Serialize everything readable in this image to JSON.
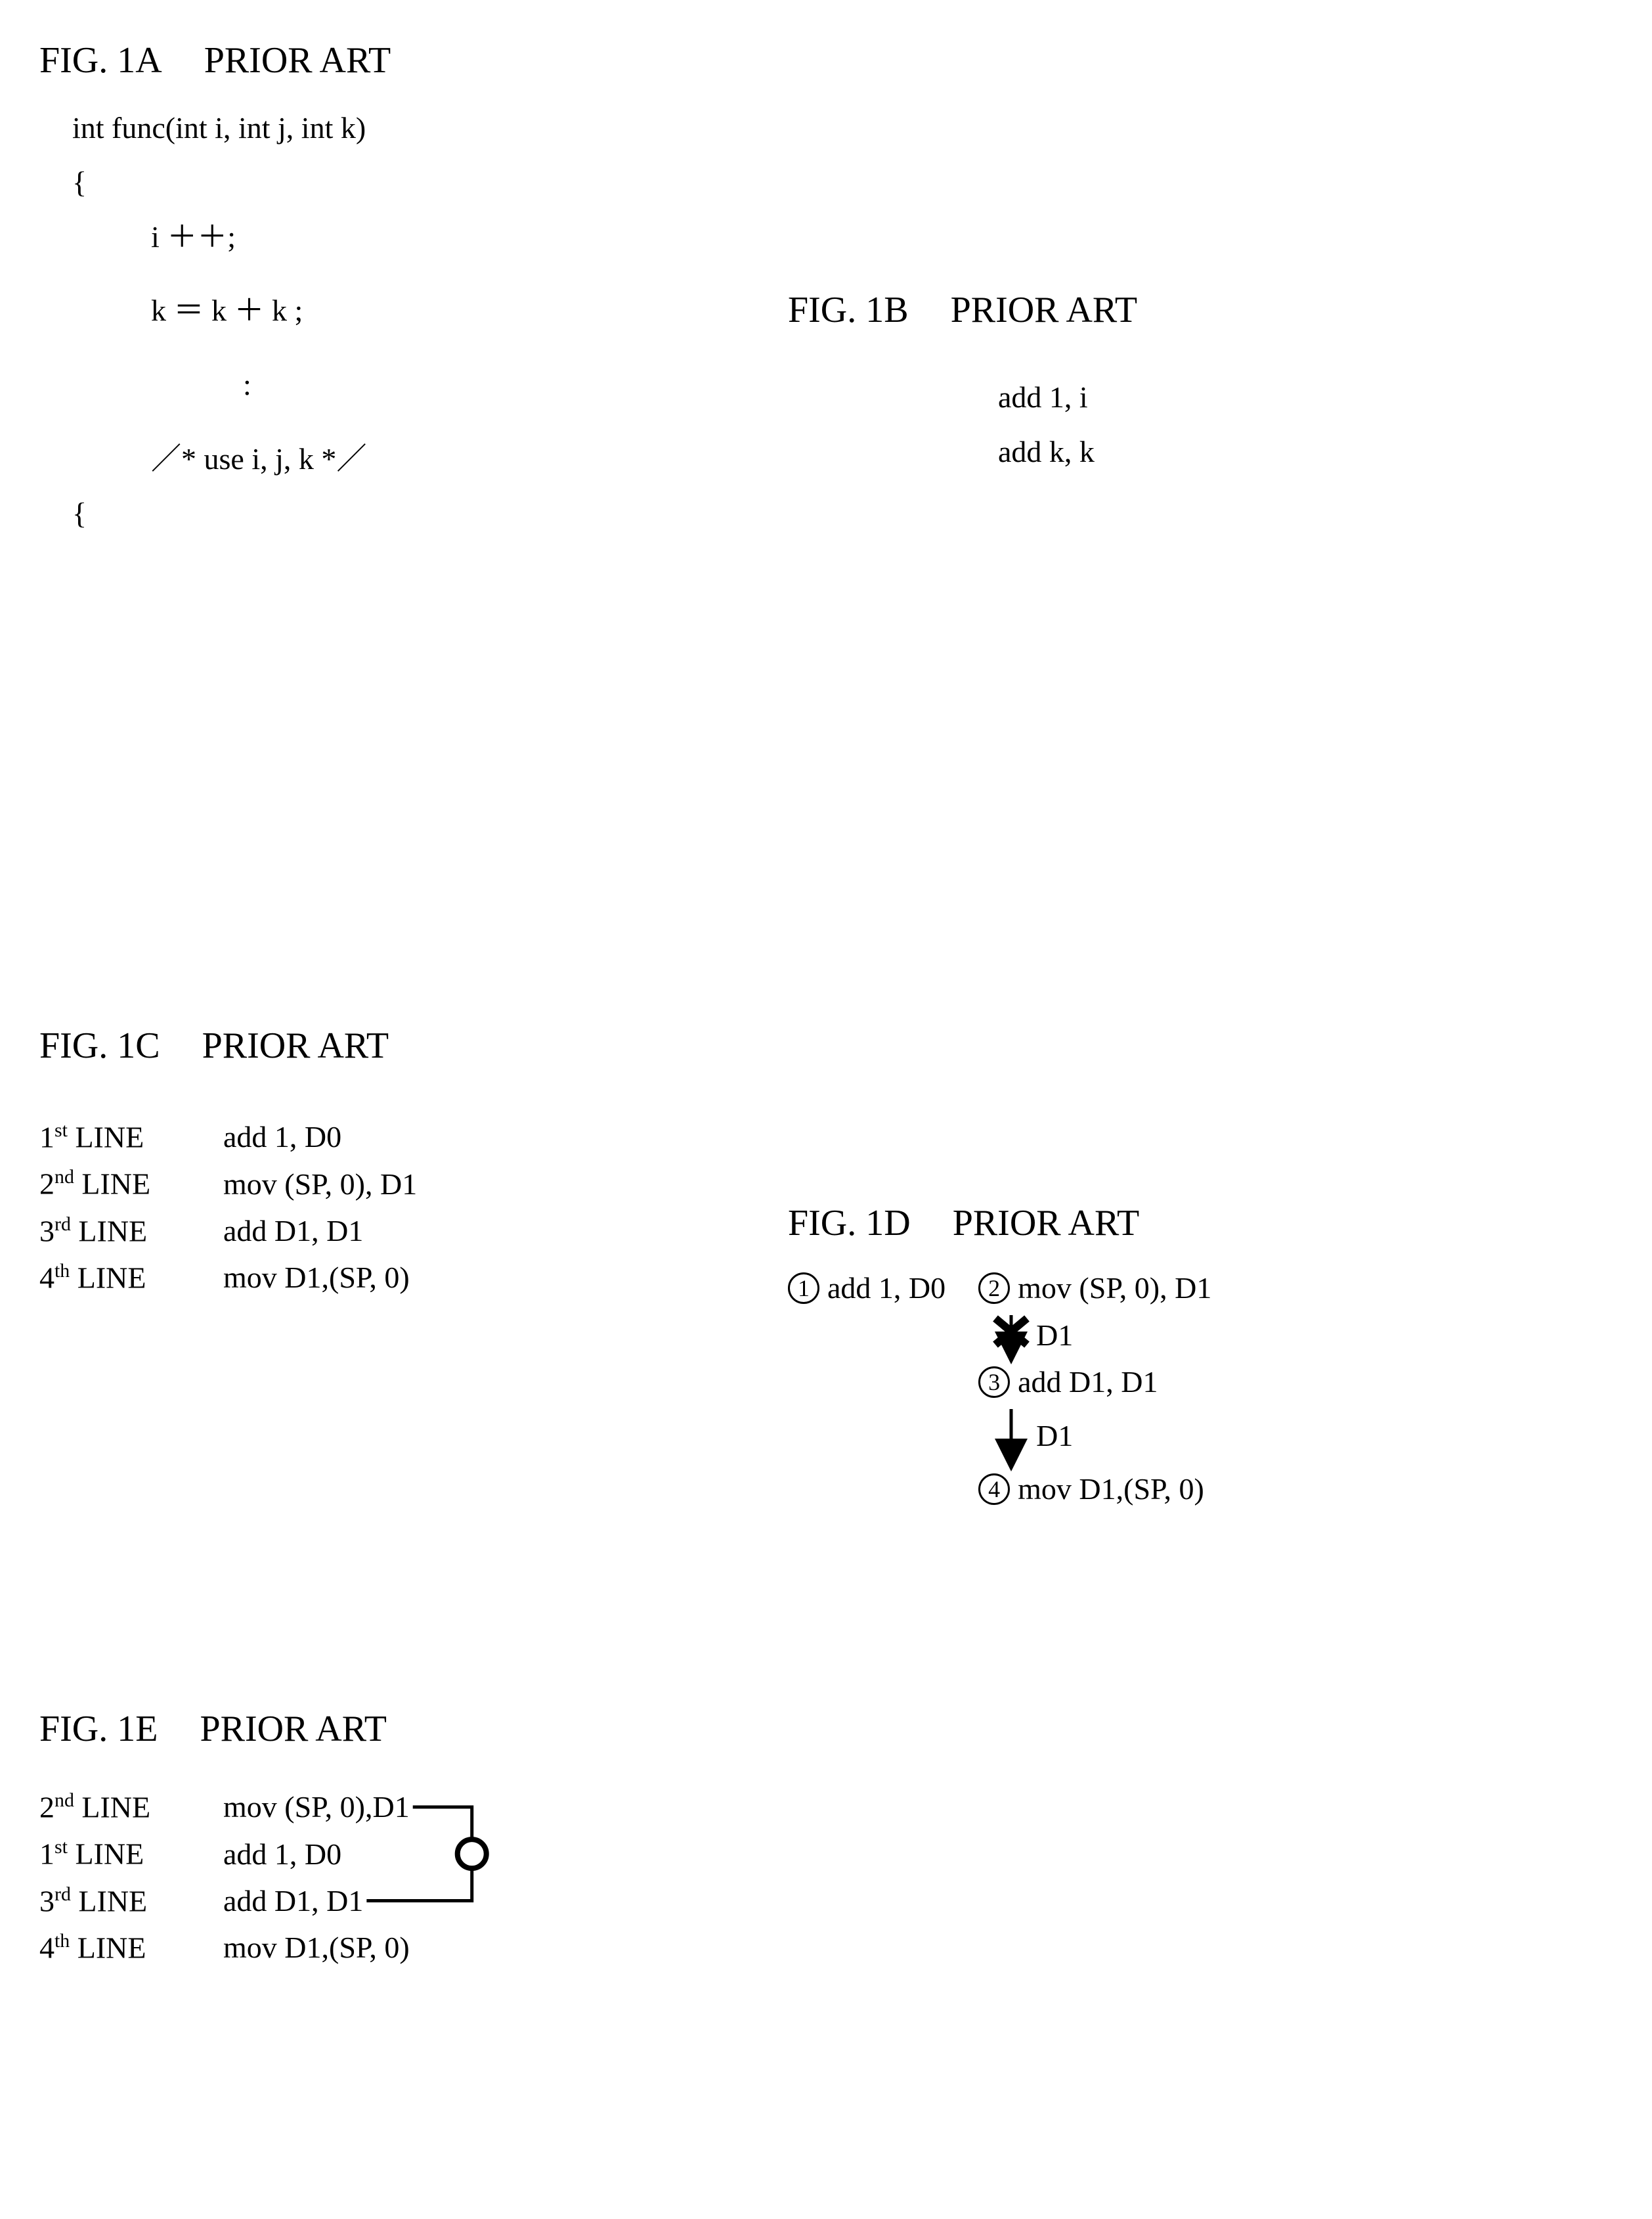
{
  "colors": {
    "text": "#000000",
    "background": "#ffffff"
  },
  "typography": {
    "family": "Times New Roman",
    "title_fontsize": 56,
    "body_fontsize": 46
  },
  "fig1a": {
    "title": "FIG. 1A",
    "prior_art": "PRIOR ART",
    "lines": {
      "sig": "int func(int i, int j, int k)",
      "open": "{",
      "l1": "i ＋＋;",
      "l2": "k ＝ k ＋ k ;",
      "dots": ":",
      "comment": "／* use i, j, k *／",
      "close": "{"
    }
  },
  "fig1b": {
    "title": "FIG. 1B",
    "prior_art": "PRIOR ART",
    "lines": {
      "l1": "add 1, i",
      "l2": "add k, k"
    }
  },
  "fig1c": {
    "title": "FIG. 1C",
    "prior_art": "PRIOR ART",
    "rows": [
      {
        "ord": "1",
        "suffix": "st",
        "label": " LINE",
        "code": "add 1, D0"
      },
      {
        "ord": "2",
        "suffix": "nd",
        "label": " LINE",
        "code": "mov (SP, 0), D1"
      },
      {
        "ord": "3",
        "suffix": "rd",
        "label": " LINE",
        "code": "add D1, D1"
      },
      {
        "ord": "4",
        "suffix": "th",
        "label": " LINE",
        "code": "mov D1,(SP, 0)"
      }
    ]
  },
  "fig1d": {
    "title": "FIG. 1D",
    "prior_art": "PRIOR ART",
    "left": {
      "num": "1",
      "code": "add 1, D0"
    },
    "right": [
      {
        "num": "2",
        "code": "mov (SP, 0), D1",
        "arrow_label": "D1",
        "blocked": true
      },
      {
        "num": "3",
        "code": "add D1, D1",
        "arrow_label": "D1",
        "blocked": false
      },
      {
        "num": "4",
        "code": "mov D1,(SP, 0)"
      }
    ]
  },
  "fig1e": {
    "title": "FIG. 1E",
    "prior_art": "PRIOR ART",
    "rows": [
      {
        "ord": "2",
        "suffix": "nd",
        "label": " LINE",
        "code": "mov (SP, 0),D1"
      },
      {
        "ord": "1",
        "suffix": "st",
        "label": " LINE",
        "code": "add 1, D0"
      },
      {
        "ord": "3",
        "suffix": "rd",
        "label": " LINE",
        "code": "add D1, D1"
      },
      {
        "ord": "4",
        "suffix": "th",
        "label": " LINE",
        "code": "mov D1,(SP, 0)"
      }
    ],
    "connector": {
      "from_row": 0,
      "to_row": 2,
      "circle_on_row": 1
    }
  }
}
